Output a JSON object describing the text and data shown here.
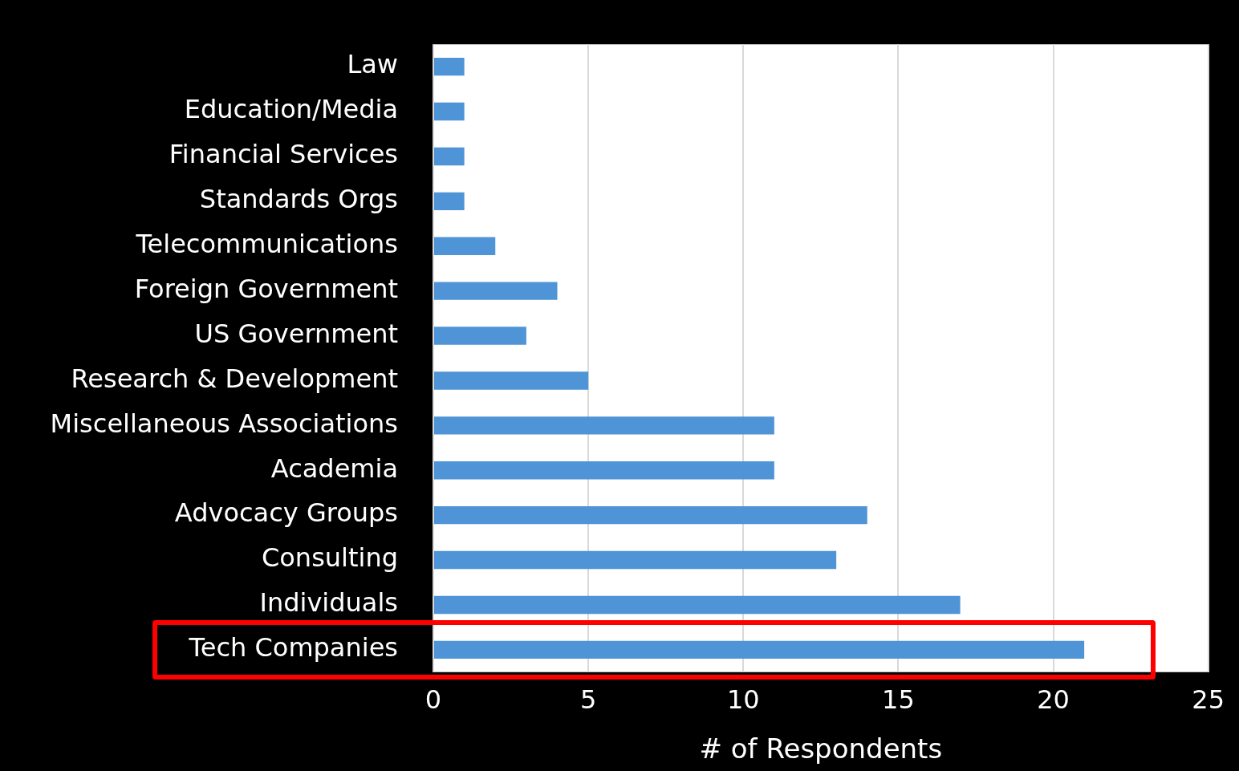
{
  "chart_data": {
    "type": "bar",
    "orientation": "horizontal",
    "categories": [
      "Law",
      "Education/Media",
      "Financial Services",
      "Standards Orgs",
      "Telecommunications",
      "Foreign Government",
      "US Government",
      "Research & Development",
      "Miscellaneous Associations",
      "Academia",
      "Advocacy Groups",
      "Consulting",
      "Individuals",
      "Tech Companies"
    ],
    "values": [
      1,
      1,
      1,
      1,
      2,
      4,
      3,
      5,
      11,
      11,
      14,
      13,
      17,
      21
    ],
    "color": "#4f94d6",
    "xlim": [
      0,
      25
    ],
    "xticks": [
      0,
      5,
      10,
      15,
      20,
      25
    ],
    "xlabel": "# of Respondents",
    "grid": "x",
    "legend": false
  }
}
